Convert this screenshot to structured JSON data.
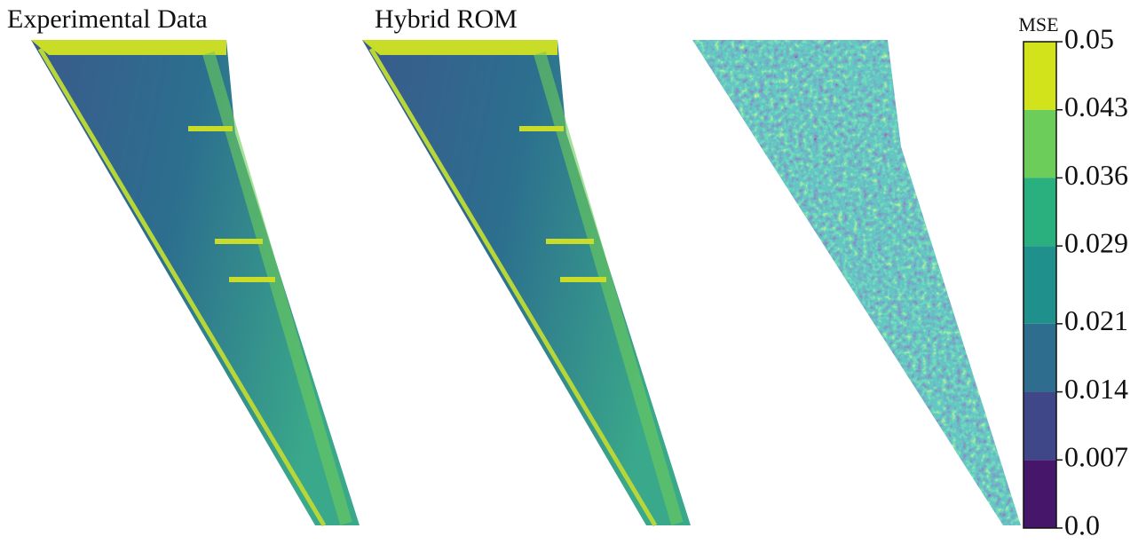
{
  "chart_data": {
    "type": "heatmap",
    "panel_titles": [
      "Experimental Data",
      "Hybrid ROM"
    ],
    "colorbar": {
      "label": "MSE",
      "lim": [
        0,
        0.05
      ],
      "ticks": [
        {
          "value": 0,
          "label": "0.0"
        },
        0.007,
        0.014,
        0.021,
        0.029,
        0.036,
        0.043,
        0.05
      ],
      "colors": [
        "#46166b",
        "#3f4788",
        "#2e6d8e",
        "#20908c",
        "#2ab07f",
        "#6ccd5a",
        "#d2e21b"
      ]
    }
  }
}
